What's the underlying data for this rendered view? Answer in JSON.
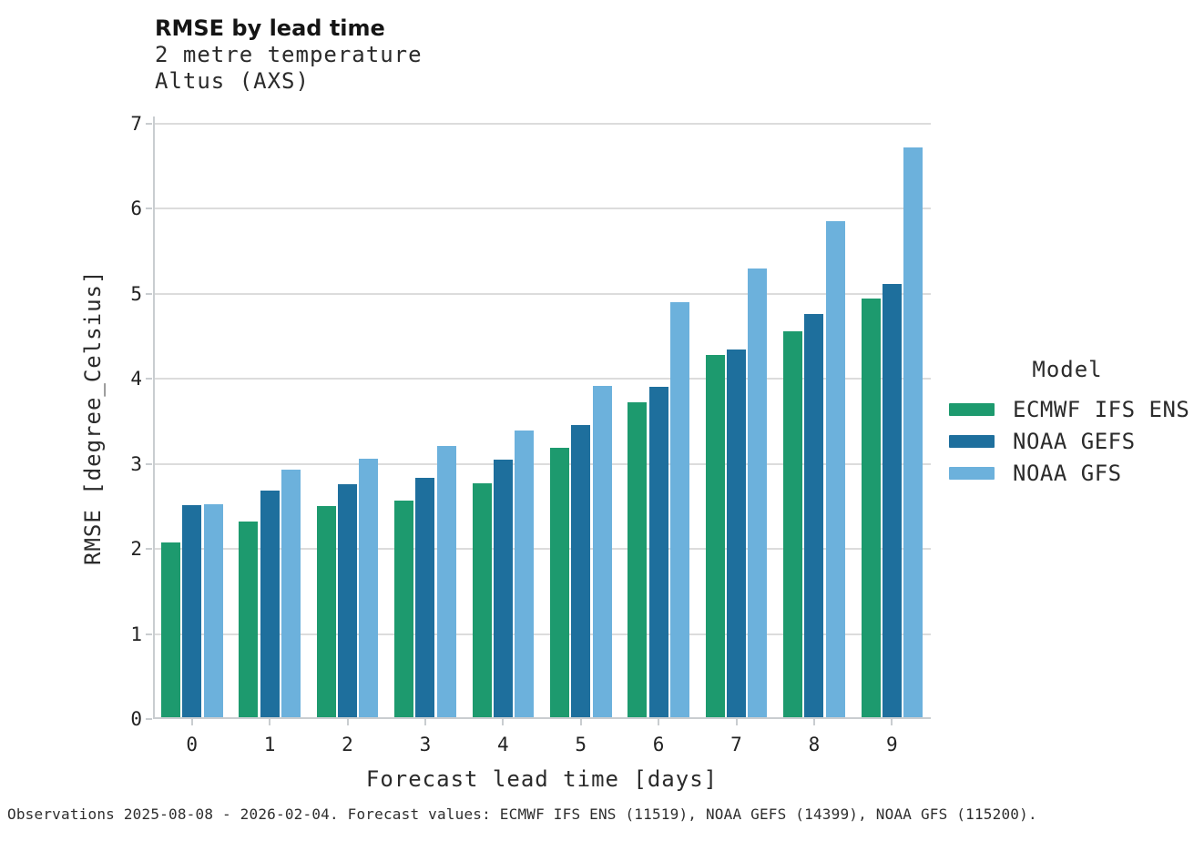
{
  "header": {
    "title": "RMSE by lead time",
    "subtitle_line1": "2 metre temperature",
    "subtitle_line2": "Altus (AXS)"
  },
  "chart_data": {
    "type": "bar",
    "title": "RMSE by lead time",
    "subtitle": [
      "2 metre temperature",
      "Altus (AXS)"
    ],
    "categories": [
      "0",
      "1",
      "2",
      "3",
      "4",
      "5",
      "6",
      "7",
      "8",
      "9"
    ],
    "series": [
      {
        "name": "ECMWF IFS ENS",
        "color": "#1d9a6e",
        "values": [
          2.06,
          2.3,
          2.48,
          2.55,
          2.75,
          3.17,
          3.7,
          4.26,
          4.54,
          4.92
        ]
      },
      {
        "name": "NOAA GEFS",
        "color": "#1e6f9d",
        "values": [
          2.49,
          2.67,
          2.74,
          2.81,
          3.03,
          3.44,
          3.89,
          4.32,
          4.74,
          5.1
        ]
      },
      {
        "name": "NOAA GFS",
        "color": "#6cb1dc",
        "values": [
          2.51,
          2.91,
          3.04,
          3.19,
          3.37,
          3.9,
          4.88,
          5.28,
          5.83,
          6.7
        ]
      }
    ],
    "xlabel": "Forecast lead time [days]",
    "ylabel": "RMSE [degree_Celsius]",
    "ylim": [
      0,
      7
    ],
    "yticks": [
      0,
      1,
      2,
      3,
      4,
      5,
      6,
      7
    ],
    "grid": "horizontal",
    "legend_position": "right"
  },
  "legend": {
    "title": "Model"
  },
  "footer": {
    "note": "Observations 2025-08-08 - 2026-02-04. Forecast values: ECMWF IFS ENS (11519), NOAA GEFS (14399), NOAA GFS (115200)."
  },
  "colors": {
    "grid": "#dcdcdc",
    "spine": "#c9cdd0",
    "text": "#222222"
  }
}
